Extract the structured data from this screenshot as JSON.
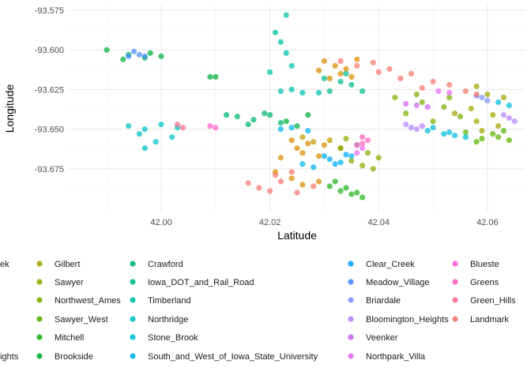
{
  "chart_data": {
    "type": "scatter",
    "xlabel": "Latitude",
    "ylabel": "Longitude",
    "xlim": [
      41.983,
      42.067
    ],
    "ylim": [
      -93.702,
      -93.572
    ],
    "x_ticks": [
      42.0,
      42.02,
      42.04,
      42.06
    ],
    "x_tick_labels": [
      "42.00",
      "42.02",
      "42.04",
      "42.06"
    ],
    "y_ticks": [
      -93.575,
      -93.6,
      -93.625,
      -93.65,
      -93.675
    ],
    "y_tick_labels": [
      "-93.575",
      "-93.600",
      "-93.625",
      "-93.650",
      "-93.675"
    ],
    "grid": true,
    "legend_position": "bottom",
    "legend_columns": [
      [
        "ek",
        "",
        "",
        "",
        "",
        "eights"
      ],
      [
        "Gilbert",
        "Sawyer",
        "Northwest_Ames",
        "Sawyer_West",
        "Mitchell",
        "Brookside"
      ],
      [
        "Crawford",
        "Iowa_DOT_and_Rail_Road",
        "Timberland",
        "Northridge",
        "Stone_Brook",
        "South_and_West_of_Iowa_State_University"
      ],
      [
        "Clear_Creek",
        "Meadow_Village",
        "Briardale",
        "Bloomington_Heights",
        "Veenker",
        "Northpark_Villa"
      ],
      [
        "Blueste",
        "Greens",
        "Green_Hills",
        "Landmark"
      ]
    ],
    "series": [
      {
        "name": "Gilbert",
        "color": "#a3a500",
        "points": [
          [
            42.058,
            -93.623
          ],
          [
            42.06,
            -93.628
          ],
          [
            42.057,
            -93.637
          ],
          [
            42.061,
            -93.641
          ],
          [
            42.063,
            -93.63
          ],
          [
            42.058,
            -93.645
          ],
          [
            42.054,
            -93.64
          ],
          [
            42.062,
            -93.648
          ],
          [
            42.059,
            -93.651
          ]
        ]
      },
      {
        "name": "Sawyer",
        "color": "#8eab00",
        "points": [
          [
            42.034,
            -93.656
          ],
          [
            42.036,
            -93.66
          ],
          [
            42.038,
            -93.665
          ],
          [
            42.035,
            -93.67
          ],
          [
            42.04,
            -93.668
          ],
          [
            42.037,
            -93.673
          ],
          [
            42.033,
            -93.662
          ],
          [
            42.039,
            -93.675
          ]
        ]
      },
      {
        "name": "Northwest_Ames",
        "color": "#7cae00",
        "points": [
          [
            42.043,
            -93.63
          ],
          [
            42.048,
            -93.633
          ],
          [
            42.052,
            -93.636
          ],
          [
            42.045,
            -93.64
          ],
          [
            42.055,
            -93.642
          ],
          [
            42.05,
            -93.645
          ],
          [
            42.047,
            -93.628
          ],
          [
            42.053,
            -93.63
          ]
        ]
      },
      {
        "name": "Sawyer_West",
        "color": "#5bb300",
        "points": [
          [
            42.056,
            -93.652
          ],
          [
            42.059,
            -93.656
          ],
          [
            42.062,
            -93.655
          ],
          [
            42.064,
            -93.657
          ],
          [
            42.058,
            -93.658
          ],
          [
            42.061,
            -93.653
          ],
          [
            42.063,
            -93.651
          ]
        ]
      },
      {
        "name": "Mitchell",
        "color": "#22b31c",
        "points": [
          [
            42.031,
            -93.686
          ],
          [
            42.033,
            -93.689
          ],
          [
            42.035,
            -93.691
          ],
          [
            42.037,
            -93.693
          ],
          [
            42.034,
            -93.687
          ],
          [
            42.036,
            -93.69
          ],
          [
            42.032,
            -93.683
          ]
        ]
      },
      {
        "name": "Brookside",
        "color": "#00b03b",
        "points": [
          [
            41.99,
            -93.6
          ],
          [
            41.994,
            -93.603
          ],
          [
            41.998,
            -93.602
          ],
          [
            42.0,
            -93.604
          ],
          [
            41.993,
            -93.606
          ],
          [
            41.997,
            -93.605
          ],
          [
            42.009,
            -93.617
          ],
          [
            42.01,
            -93.617
          ],
          [
            42.023,
            -93.645
          ],
          [
            42.025,
            -93.648
          ],
          [
            42.027,
            -93.641
          ]
        ]
      },
      {
        "name": "Crawford",
        "color": "#00b56f",
        "points": [
          [
            42.014,
            -93.642
          ],
          [
            42.017,
            -93.644
          ],
          [
            42.02,
            -93.641
          ],
          [
            42.022,
            -93.646
          ],
          [
            42.016,
            -93.647
          ],
          [
            42.019,
            -93.64
          ],
          [
            42.012,
            -93.641
          ]
        ]
      },
      {
        "name": "Iowa_DOT_and_Rail_Road",
        "color": "#00bb8b",
        "points": [
          [
            42.03,
            -93.618
          ],
          [
            42.033,
            -93.62
          ],
          [
            42.035,
            -93.622
          ],
          [
            42.031,
            -93.626
          ],
          [
            42.037,
            -93.626
          ],
          [
            42.034,
            -93.615
          ]
        ]
      },
      {
        "name": "Timberland",
        "color": "#00c0a8",
        "points": [
          [
            42.021,
            -93.589
          ],
          [
            42.023,
            -93.578
          ],
          [
            42.022,
            -93.595
          ],
          [
            42.024,
            -93.61
          ],
          [
            42.02,
            -93.614
          ],
          [
            42.022,
            -93.626
          ],
          [
            42.026,
            -93.627
          ],
          [
            42.029,
            -93.627
          ],
          [
            42.024,
            -93.625
          ],
          [
            42.023,
            -93.602
          ]
        ]
      },
      {
        "name": "Northridge",
        "color": "#00c0c2",
        "points": [
          [
            41.994,
            -93.648
          ],
          [
            41.997,
            -93.65
          ],
          [
            42.0,
            -93.647
          ],
          [
            42.003,
            -93.649
          ],
          [
            41.996,
            -93.653
          ],
          [
            41.999,
            -93.658
          ],
          [
            42.002,
            -93.655
          ],
          [
            41.997,
            -93.662
          ]
        ]
      },
      {
        "name": "Stone_Brook",
        "color": "#00bcd8",
        "points": [
          [
            42.049,
            -93.651
          ],
          [
            42.052,
            -93.653
          ],
          [
            42.054,
            -93.654
          ],
          [
            42.056,
            -93.655
          ],
          [
            42.05,
            -93.649
          ],
          [
            42.053,
            -93.652
          ],
          [
            42.062,
            -93.633
          ],
          [
            42.064,
            -93.635
          ]
        ]
      },
      {
        "name": "South_and_West_of_Iowa_State_University",
        "color": "#00b5ee",
        "points": [
          [
            42.022,
            -93.65
          ],
          [
            42.024,
            -93.649
          ],
          [
            42.027,
            -93.651
          ],
          [
            42.026,
            -93.672
          ],
          [
            42.028,
            -93.674
          ],
          [
            42.033,
            -93.671
          ],
          [
            42.035,
            -93.667
          ]
        ]
      },
      {
        "name": "Clear_Creek",
        "color": "#00a9ff",
        "points": [
          [
            42.03,
            -93.667
          ],
          [
            42.031,
            -93.669
          ],
          [
            42.034,
            -93.666
          ],
          [
            42.032,
            -93.672
          ]
        ]
      },
      {
        "name": "Meadow_Village",
        "color": "#4a8cff",
        "points": [
          [
            41.995,
            -93.601
          ],
          [
            41.996,
            -93.603
          ],
          [
            41.997,
            -93.604
          ],
          [
            41.994,
            -93.604
          ]
        ]
      },
      {
        "name": "Briardale",
        "color": "#7f96ff",
        "points": [
          [
            42.058,
            -93.629
          ],
          [
            42.059,
            -93.63
          ],
          [
            42.06,
            -93.632
          ]
        ]
      },
      {
        "name": "Bloomington_Heights",
        "color": "#b983ff",
        "points": [
          [
            42.045,
            -93.647
          ],
          [
            42.046,
            -93.649
          ],
          [
            42.047,
            -93.65
          ],
          [
            42.048,
            -93.648
          ],
          [
            42.063,
            -93.641
          ],
          [
            42.064,
            -93.643
          ],
          [
            42.065,
            -93.645
          ]
        ]
      },
      {
        "name": "Veenker",
        "color": "#cc66f0",
        "points": [
          [
            42.045,
            -93.634
          ],
          [
            42.047,
            -93.635
          ],
          [
            42.049,
            -93.636
          ]
        ]
      },
      {
        "name": "Northpark_Villa",
        "color": "#e76bf3",
        "points": [
          [
            42.036,
            -93.66
          ],
          [
            42.037,
            -93.662
          ],
          [
            42.036,
            -93.665
          ],
          [
            42.051,
            -93.626
          ],
          [
            42.053,
            -93.627
          ]
        ]
      },
      {
        "name": "Blueste",
        "color": "#fd61d1",
        "points": [
          [
            42.009,
            -93.648
          ],
          [
            42.01,
            -93.649
          ]
        ]
      },
      {
        "name": "Greens",
        "color": "#ff62bc",
        "points": [
          [
            42.037,
            -93.655
          ],
          [
            42.038,
            -93.657
          ],
          [
            42.037,
            -93.659
          ]
        ]
      },
      {
        "name": "Green_Hills",
        "color": "#ff6c91",
        "points": [
          [
            42.003,
            -93.647
          ],
          [
            42.004,
            -93.649
          ]
        ]
      },
      {
        "name": "Landmark",
        "color": "#f8766d",
        "points": [
          [
            42.033,
            -93.607
          ],
          [
            42.036,
            -93.61
          ],
          [
            42.039,
            -93.608
          ],
          [
            42.042,
            -93.612
          ],
          [
            42.046,
            -93.615
          ],
          [
            42.05,
            -93.62
          ],
          [
            42.053,
            -93.622
          ],
          [
            42.056,
            -93.626
          ],
          [
            42.044,
            -93.618
          ],
          [
            42.048,
            -93.624
          ],
          [
            42.058,
            -93.628
          ],
          [
            42.04,
            -93.614
          ],
          [
            42.016,
            -93.684
          ],
          [
            42.018,
            -93.687
          ],
          [
            42.02,
            -93.689
          ],
          [
            42.022,
            -93.683
          ],
          [
            42.025,
            -93.69
          ],
          [
            42.028,
            -93.686
          ],
          [
            42.021,
            -93.679
          ],
          [
            42.024,
            -93.677
          ]
        ]
      }
    ],
    "extra_clusters": [
      {
        "color": "#db8e00",
        "points": [
          [
            42.03,
            -93.607
          ],
          [
            42.032,
            -93.61
          ],
          [
            42.034,
            -93.612
          ],
          [
            42.031,
            -93.618
          ],
          [
            42.033,
            -93.615
          ],
          [
            42.036,
            -93.606
          ],
          [
            42.035,
            -93.617
          ],
          [
            42.029,
            -93.613
          ],
          [
            42.024,
            -93.657
          ],
          [
            42.027,
            -93.659
          ],
          [
            42.03,
            -93.66
          ],
          [
            42.026,
            -93.665
          ],
          [
            42.029,
            -93.667
          ],
          [
            42.025,
            -93.662
          ],
          [
            42.022,
            -93.668
          ],
          [
            42.024,
            -93.681
          ],
          [
            42.026,
            -93.685
          ],
          [
            42.029,
            -93.683
          ],
          [
            42.021,
            -93.677
          ]
        ]
      },
      {
        "color": "#c49a00",
        "points": [
          [
            42.026,
            -93.655
          ],
          [
            42.028,
            -93.658
          ],
          [
            42.031,
            -93.657
          ],
          [
            42.033,
            -93.662
          ]
        ]
      }
    ]
  }
}
